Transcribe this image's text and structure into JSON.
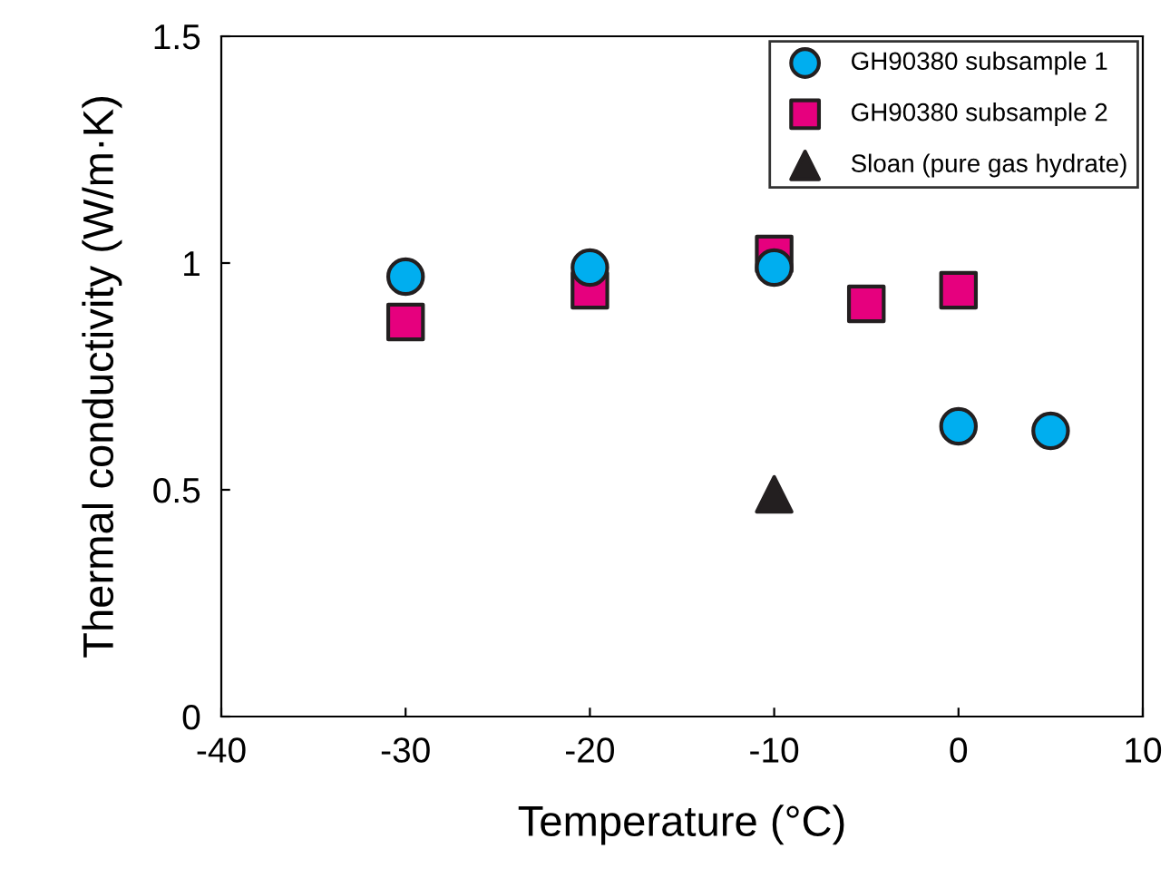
{
  "chart_data": {
    "type": "scatter",
    "xlabel": "Temperature (°C)",
    "ylabel": "Thermal conductivity (W/m·K)",
    "xlim": [
      -40,
      10
    ],
    "xticks": [
      -40,
      -30,
      -20,
      -10,
      0,
      10
    ],
    "ylim": [
      0,
      1.5
    ],
    "yticks": [
      0,
      0.5,
      1,
      1.5
    ],
    "grid": false,
    "legend": "top right",
    "series": [
      {
        "name": "GH90380 subsample 1",
        "color": "#00aeef",
        "marker": "circle",
        "x": [
          -30,
          -20,
          -10,
          0,
          5
        ],
        "values": [
          0.97,
          0.99,
          0.99,
          0.64,
          0.63
        ]
      },
      {
        "name": "GH90380 subsample 2",
        "color": "#e6007e",
        "marker": "square",
        "x": [
          -30,
          -20,
          -10,
          -5,
          0
        ],
        "values": [
          0.87,
          0.94,
          1.02,
          0.91,
          0.94
        ]
      },
      {
        "name": "Sloan (pure gas hydrate)",
        "color": "#231f20",
        "marker": "triangle",
        "x": [
          -10
        ],
        "values": [
          0.49
        ]
      }
    ]
  }
}
